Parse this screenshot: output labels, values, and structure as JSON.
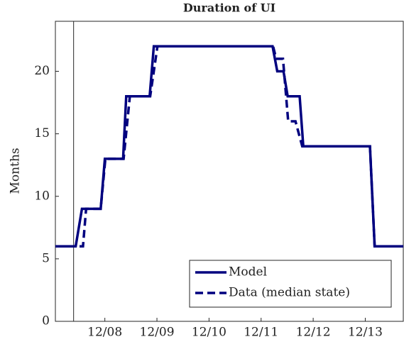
{
  "chart_data": {
    "type": "line",
    "title": "Duration of UI",
    "ylabel": "Months",
    "xlim": [
      2007.97,
      2014.65
    ],
    "ylim": [
      0,
      24
    ],
    "xticks": [
      {
        "value": 2008.92,
        "label": "12/08"
      },
      {
        "value": 2009.92,
        "label": "12/09"
      },
      {
        "value": 2010.92,
        "label": "12/10"
      },
      {
        "value": 2011.92,
        "label": "12/11"
      },
      {
        "value": 2012.92,
        "label": "12/12"
      },
      {
        "value": 2013.92,
        "label": "12/13"
      }
    ],
    "yticks": [
      0,
      5,
      10,
      15,
      20
    ],
    "vline": 2008.32,
    "legend": "lower right",
    "series": [
      {
        "name": "Model",
        "color": "#00007f",
        "dash": false,
        "x": [
          2007.97,
          2008.36,
          2008.48,
          2008.84,
          2008.92,
          2009.27,
          2009.33,
          2009.78,
          2009.86,
          2012.14,
          2012.23,
          2012.35,
          2012.43,
          2012.66,
          2012.73,
          2014.01,
          2014.1,
          2014.65
        ],
        "values": [
          6,
          6,
          9,
          9,
          13,
          13,
          18,
          18,
          22,
          22,
          20,
          20,
          18,
          18,
          14,
          14,
          6,
          6
        ]
      },
      {
        "name": "Data (median state)",
        "color": "#00007f",
        "dash": true,
        "x": [
          2007.97,
          2008.5,
          2008.56,
          2008.84,
          2008.93,
          2009.28,
          2009.4,
          2009.79,
          2009.93,
          2012.15,
          2012.21,
          2012.34,
          2012.44,
          2012.58,
          2012.71,
          2014.01,
          2014.1,
          2014.65
        ],
        "values": [
          6,
          6,
          9,
          9,
          13,
          13,
          18,
          18,
          22,
          22,
          21,
          21,
          16,
          16,
          14,
          14,
          6,
          6
        ]
      }
    ]
  }
}
